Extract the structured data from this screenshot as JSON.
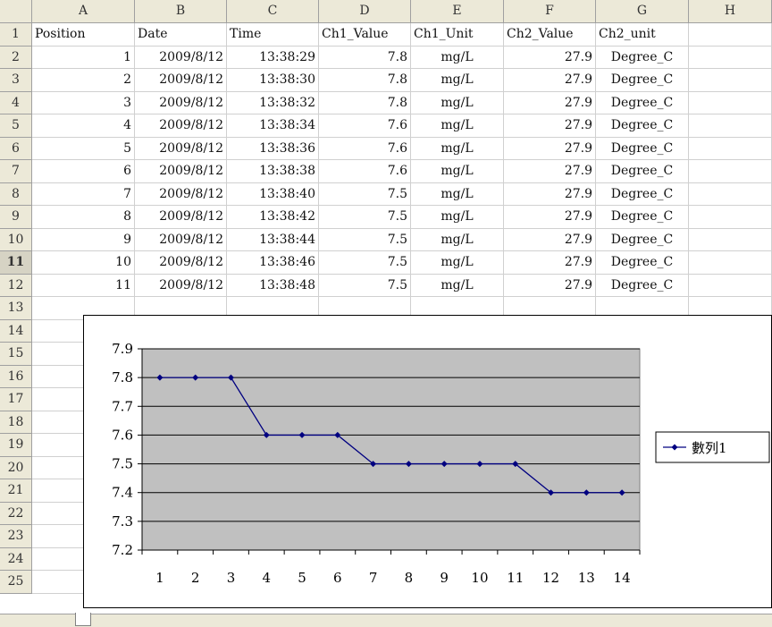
{
  "columns": [
    "A",
    "B",
    "C",
    "D",
    "E",
    "F",
    "G",
    "H"
  ],
  "rows": [
    "1",
    "2",
    "3",
    "4",
    "5",
    "6",
    "7",
    "8",
    "9",
    "10",
    "11",
    "12",
    "13",
    "14",
    "15",
    "16",
    "17",
    "18",
    "19",
    "20",
    "21",
    "22",
    "23",
    "24",
    "25"
  ],
  "selected_row": "11",
  "headers": [
    "Position",
    "Date",
    "Time",
    "Ch1_Value",
    "Ch1_Unit",
    "Ch2_Value",
    "Ch2_unit"
  ],
  "table": [
    [
      "1",
      "2009/8/12",
      "13:38:29",
      "7.8",
      "mg/L",
      "27.9",
      "Degree_C"
    ],
    [
      "2",
      "2009/8/12",
      "13:38:30",
      "7.8",
      "mg/L",
      "27.9",
      "Degree_C"
    ],
    [
      "3",
      "2009/8/12",
      "13:38:32",
      "7.8",
      "mg/L",
      "27.9",
      "Degree_C"
    ],
    [
      "4",
      "2009/8/12",
      "13:38:34",
      "7.6",
      "mg/L",
      "27.9",
      "Degree_C"
    ],
    [
      "5",
      "2009/8/12",
      "13:38:36",
      "7.6",
      "mg/L",
      "27.9",
      "Degree_C"
    ],
    [
      "6",
      "2009/8/12",
      "13:38:38",
      "7.6",
      "mg/L",
      "27.9",
      "Degree_C"
    ],
    [
      "7",
      "2009/8/12",
      "13:38:40",
      "7.5",
      "mg/L",
      "27.9",
      "Degree_C"
    ],
    [
      "8",
      "2009/8/12",
      "13:38:42",
      "7.5",
      "mg/L",
      "27.9",
      "Degree_C"
    ],
    [
      "9",
      "2009/8/12",
      "13:38:44",
      "7.5",
      "mg/L",
      "27.9",
      "Degree_C"
    ],
    [
      "10",
      "2009/8/12",
      "13:38:46",
      "7.5",
      "mg/L",
      "27.9",
      "Degree_C"
    ],
    [
      "11",
      "2009/8/12",
      "13:38:48",
      "7.5",
      "mg/L",
      "27.9",
      "Degree_C"
    ]
  ],
  "chart_data": {
    "type": "line",
    "categories": [
      "1",
      "2",
      "3",
      "4",
      "5",
      "6",
      "7",
      "8",
      "9",
      "10",
      "11",
      "12",
      "13",
      "14"
    ],
    "series": [
      {
        "name": "數列1",
        "values": [
          7.8,
          7.8,
          7.8,
          7.6,
          7.6,
          7.6,
          7.5,
          7.5,
          7.5,
          7.5,
          7.5,
          7.4,
          7.4,
          7.4
        ],
        "color": "#000080"
      }
    ],
    "ylim": [
      7.2,
      7.9
    ],
    "yticks": [
      "7.2",
      "7.3",
      "7.4",
      "7.5",
      "7.6",
      "7.7",
      "7.8",
      "7.9"
    ],
    "grid": true,
    "plot_background": "#c0c0c0",
    "legend_position": "right"
  }
}
